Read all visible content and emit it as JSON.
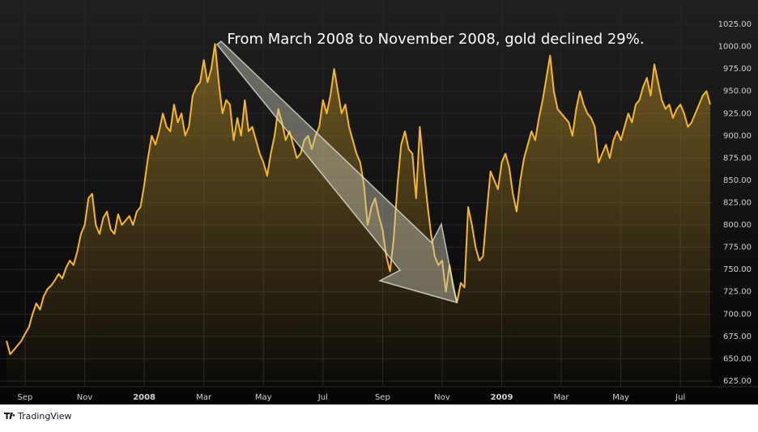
{
  "chart_data": {
    "type": "line",
    "annotation": "From March 2008 to November 2008, gold declined 29%.",
    "source": "TradingView",
    "color": "#f5b829",
    "grid": true,
    "ylim": [
      618.6,
      1045
    ],
    "yticks": [
      {
        "value": 625,
        "label": "625.00"
      },
      {
        "value": 650,
        "label": "650.00"
      },
      {
        "value": 675,
        "label": "675.00"
      },
      {
        "value": 700,
        "label": "700.00"
      },
      {
        "value": 725,
        "label": "725.00"
      },
      {
        "value": 750,
        "label": "750.00"
      },
      {
        "value": 775,
        "label": "775.00"
      },
      {
        "value": 800,
        "label": "800.00"
      },
      {
        "value": 825,
        "label": "825.00"
      },
      {
        "value": 850,
        "label": "850.00"
      },
      {
        "value": 875,
        "label": "875.00"
      },
      {
        "value": 900,
        "label": "900.00"
      },
      {
        "value": 925,
        "label": "925.00"
      },
      {
        "value": 950,
        "label": "950.00"
      },
      {
        "value": 975,
        "label": "975.00"
      },
      {
        "value": 1000,
        "label": "1000.00"
      },
      {
        "value": 1025,
        "label": "1025.00"
      }
    ],
    "categories": [
      null,
      null,
      null,
      null,
      null,
      "Sep",
      null,
      null,
      null,
      null,
      null,
      null,
      null,
      null,
      null,
      null,
      null,
      null,
      null,
      null,
      null,
      "Nov",
      null,
      null,
      null,
      null,
      null,
      null,
      null,
      null,
      null,
      null,
      null,
      null,
      null,
      null,
      null,
      "2008",
      null,
      null,
      null,
      null,
      null,
      null,
      null,
      null,
      null,
      null,
      null,
      null,
      null,
      null,
      null,
      "Mar",
      null,
      null,
      null,
      null,
      null,
      null,
      null,
      null,
      null,
      null,
      null,
      null,
      null,
      null,
      null,
      "May",
      null,
      null,
      null,
      null,
      null,
      null,
      null,
      null,
      null,
      null,
      null,
      null,
      null,
      null,
      null,
      "Jul",
      null,
      null,
      null,
      null,
      null,
      null,
      null,
      null,
      null,
      null,
      null,
      null,
      null,
      null,
      null,
      "Sep",
      null,
      null,
      null,
      null,
      null,
      null,
      null,
      null,
      null,
      null,
      null,
      null,
      null,
      null,
      null,
      "Nov",
      null,
      null,
      null,
      null,
      null,
      null,
      null,
      null,
      null,
      null,
      null,
      null,
      null,
      null,
      null,
      "2009",
      null,
      null,
      null,
      null,
      null,
      null,
      null,
      null,
      null,
      null,
      null,
      null,
      null,
      null,
      null,
      "Mar",
      null,
      null,
      null,
      null,
      null,
      null,
      null,
      null,
      null,
      null,
      null,
      null,
      null,
      null,
      null,
      "May",
      null,
      null,
      null,
      null,
      null,
      null,
      null,
      null,
      null,
      null,
      null,
      null,
      null,
      null,
      null,
      "Jul",
      null,
      null,
      null,
      null,
      null,
      null,
      null,
      null
    ],
    "values": [
      670,
      655,
      660,
      665,
      670,
      678,
      685,
      700,
      712,
      705,
      720,
      728,
      732,
      738,
      745,
      740,
      752,
      760,
      755,
      770,
      790,
      800,
      830,
      835,
      800,
      790,
      808,
      815,
      795,
      790,
      812,
      800,
      805,
      810,
      800,
      815,
      820,
      845,
      875,
      900,
      890,
      905,
      925,
      910,
      905,
      935,
      915,
      925,
      900,
      910,
      945,
      955,
      960,
      985,
      960,
      975,
      1003,
      960,
      925,
      940,
      935,
      895,
      920,
      900,
      940,
      905,
      910,
      895,
      880,
      870,
      855,
      880,
      900,
      930,
      915,
      895,
      905,
      890,
      875,
      880,
      895,
      900,
      885,
      900,
      910,
      940,
      925,
      945,
      975,
      950,
      925,
      935,
      910,
      895,
      880,
      870,
      845,
      800,
      820,
      830,
      810,
      795,
      765,
      748,
      785,
      845,
      890,
      905,
      885,
      880,
      830,
      910,
      865,
      825,
      790,
      765,
      755,
      760,
      725,
      755,
      730,
      713,
      735,
      730,
      820,
      800,
      775,
      760,
      765,
      815,
      860,
      850,
      840,
      870,
      880,
      865,
      835,
      815,
      850,
      875,
      890,
      905,
      895,
      920,
      940,
      965,
      990,
      950,
      930,
      925,
      920,
      915,
      900,
      930,
      950,
      935,
      925,
      920,
      910,
      870,
      880,
      890,
      875,
      895,
      905,
      895,
      910,
      925,
      915,
      935,
      940,
      955,
      965,
      945,
      980,
      960,
      940,
      930,
      935,
      920,
      930,
      935,
      925,
      910,
      915,
      925,
      935,
      945,
      950,
      935
    ]
  }
}
